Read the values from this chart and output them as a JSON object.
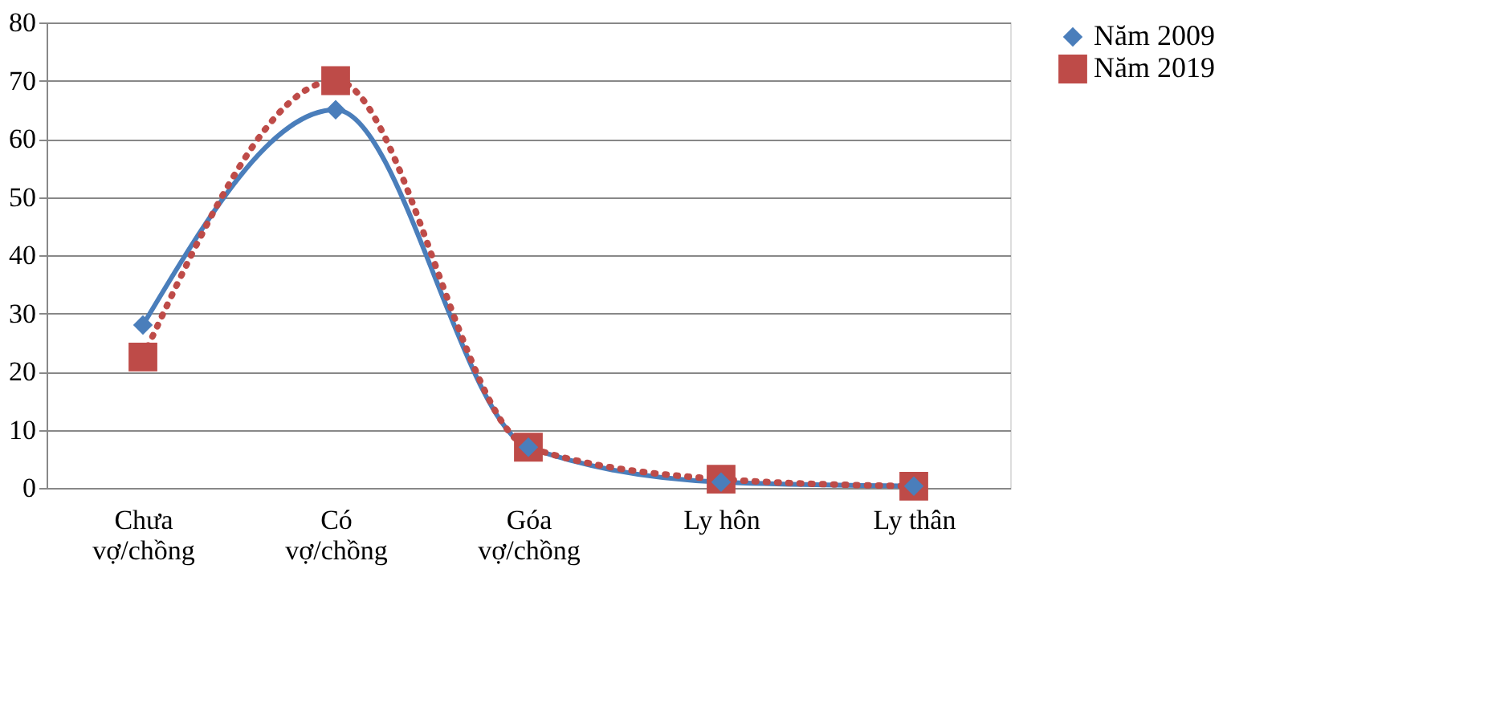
{
  "chart_data": {
    "type": "line",
    "categories": [
      "Chưa\nvợ/chồng",
      "Có\nvợ/chồng",
      "Góa\nvợ/chồng",
      "Ly hôn",
      "Ly thân"
    ],
    "series": [
      {
        "name": "Năm 2009",
        "color": "#4a7ebb",
        "marker": "diamond",
        "line_style": "solid",
        "values": [
          28,
          65,
          7,
          1,
          0.3
        ]
      },
      {
        "name": "Năm 2019",
        "color": "#be4b48",
        "marker": "square",
        "line_style": "dotted",
        "values": [
          22.5,
          70,
          7,
          1.5,
          0.3
        ]
      }
    ],
    "ylim": [
      0,
      80
    ],
    "yticks": [
      0,
      10,
      20,
      30,
      40,
      50,
      60,
      70,
      80
    ],
    "grid": "y",
    "legend": "right"
  }
}
